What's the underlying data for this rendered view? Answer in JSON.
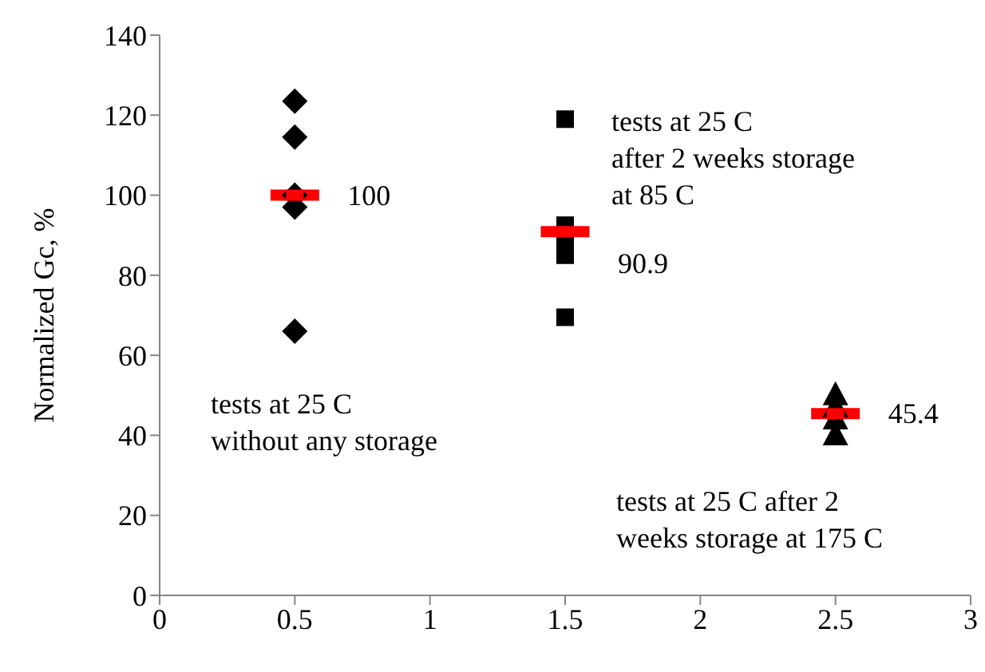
{
  "chart_data": {
    "type": "scatter",
    "ylabel": "Normalized Gc, %",
    "xlim": [
      0,
      3
    ],
    "xticks": [
      0,
      0.5,
      1,
      1.5,
      2,
      2.5,
      3
    ],
    "ylim": [
      0,
      140
    ],
    "yticks": [
      0,
      20,
      40,
      60,
      80,
      100,
      120,
      140
    ],
    "grid": false,
    "legend": false,
    "series": [
      {
        "color": "#000000",
        "marker": "diamond",
        "x": [
          0.5,
          0.5,
          0.5,
          0.5,
          0.5
        ],
        "values": [
          123.5,
          114.5,
          100,
          97,
          66
        ]
      },
      {
        "color": "#000000",
        "marker": "square",
        "x": [
          1.5,
          1.5,
          1.5,
          1.5,
          1.5
        ],
        "values": [
          119,
          92.5,
          89,
          85,
          69.5
        ]
      },
      {
        "color": "#000000",
        "marker": "triangle",
        "x": [
          2.5,
          2.5,
          2.5,
          2.5
        ],
        "values": [
          49.5,
          46.5,
          43.5,
          39.5
        ]
      },
      {
        "color": "#ff0000",
        "marker": "square",
        "x": [
          0.5,
          1.5,
          2.5
        ],
        "values": [
          100,
          90.9,
          45.4
        ],
        "xerrors": [
          0.09,
          0.09,
          0.09
        ],
        "value_labels": [
          "100",
          "90.9",
          "45.4"
        ]
      }
    ],
    "annotations": [
      "tests at 25 C\nwithout any storage",
      "tests at 25 C\nafter 2 weeks storage\nat 85 C",
      "tests at 25 C after 2\nweeks storage at 175 C"
    ]
  }
}
